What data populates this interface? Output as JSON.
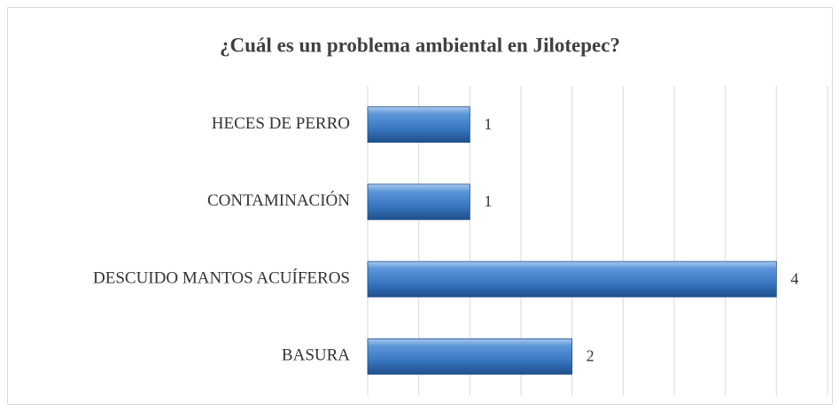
{
  "chart_data": {
    "type": "bar",
    "orientation": "horizontal",
    "title": "¿Cuál es un problema ambiental en Jilotepec?",
    "categories": [
      "HECES DE PERRO",
      "CONTAMINACIÓN",
      "DESCUIDO MANTOS ACUÍFEROS",
      "BASURA"
    ],
    "values": [
      1,
      1,
      4,
      2
    ],
    "color": "#3a78c2",
    "xlim": [
      0,
      4.5
    ],
    "xticks": [
      0,
      0.5,
      1,
      1.5,
      2,
      2.5,
      3,
      3.5,
      4,
      4.5
    ],
    "grid": true
  }
}
